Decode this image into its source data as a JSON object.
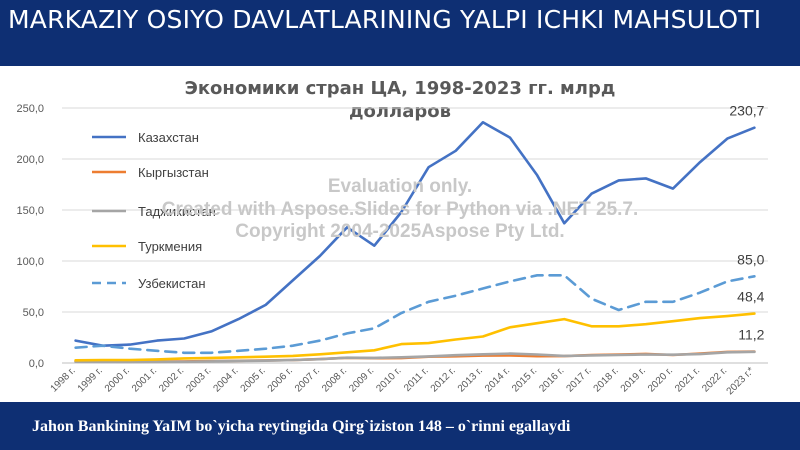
{
  "slide": {
    "title": "MARKAZIY OSIYO DAVLATLARINING YALPI ICHKI MAHSULOTI",
    "footer": "Jahon Bankining YaIM bo`yicha reytingida Qirg`iziston 148 – o`rinni egallaydi"
  },
  "watermark": {
    "line1": "Evaluation only.",
    "line2": "Created with Aspose.Slides for Python via .NET 25.7.",
    "line3": "Copyright 2004-2025Aspose Pty Ltd."
  },
  "chart_data": {
    "type": "line",
    "title_line1": "Экономики стран ЦА, 1998-2023 гг. млрд",
    "title_line2": "долларов",
    "categories": [
      "1998 г.",
      "1999 г.",
      "2000 г.",
      "2001 г.",
      "2002 г.",
      "2003 г.",
      "2004 г.",
      "2005 г.",
      "2006 г.",
      "2007 г.",
      "2008 г.",
      "2009 г.",
      "2010 г.",
      "2011 г.",
      "2012 г.",
      "2013 г.",
      "2014 г.",
      "2015 г.",
      "2016 г.",
      "2017 г.",
      "2018 г.",
      "2019 г.",
      "2020 г.",
      "2021 г.",
      "2022 г.",
      "2023 г.*"
    ],
    "ylim": [
      0,
      250
    ],
    "yticks": [
      "0,0",
      "50,0",
      "100,0",
      "150,0",
      "200,0",
      "250,0"
    ],
    "legend_position": "left",
    "grid": true,
    "series": [
      {
        "name": "Казахстан",
        "color": "#4472c4",
        "dash": "solid",
        "values": [
          22,
          17,
          18,
          22,
          24,
          31,
          43,
          57,
          81,
          105,
          133,
          115,
          148,
          192,
          208,
          236,
          221,
          184,
          137,
          166,
          179,
          181,
          171,
          197,
          220,
          230.7
        ]
      },
      {
        "name": "Кыргызстан",
        "color": "#ed7d31",
        "dash": "solid",
        "values": [
          1.7,
          1.3,
          1.4,
          1.5,
          1.6,
          1.9,
          2.2,
          2.5,
          2.8,
          3.8,
          5.1,
          4.7,
          4.8,
          6.2,
          6.6,
          7.3,
          7.5,
          6.7,
          6.8,
          7.7,
          8.3,
          8.9,
          7.8,
          9.3,
          10.9,
          11.2
        ]
      },
      {
        "name": "Таджикистан",
        "color": "#a5a5a5",
        "dash": "solid",
        "values": [
          1.3,
          1.1,
          0.9,
          1.1,
          1.2,
          1.6,
          2.1,
          2.3,
          2.8,
          3.7,
          5.2,
          5.0,
          5.6,
          6.5,
          7.6,
          8.5,
          9.2,
          8.3,
          7.0,
          7.5,
          7.8,
          8.3,
          8.1,
          8.7,
          10.5,
          11.0
        ]
      },
      {
        "name": "Туркмения",
        "color": "#ffc000",
        "dash": "solid",
        "values": [
          2.6,
          2.9,
          2.9,
          3.5,
          4.5,
          5.0,
          5.6,
          6.2,
          7.0,
          8.5,
          10.5,
          12.5,
          18.5,
          19.5,
          23,
          26,
          35,
          39,
          43,
          36,
          36,
          38,
          41,
          44,
          46,
          48.4
        ]
      },
      {
        "name": "Узбекистан",
        "color": "#5b9bd5",
        "dash": "dashed",
        "values": [
          15,
          17,
          14,
          12,
          10,
          10,
          12,
          14,
          17,
          22,
          29,
          34,
          49,
          60,
          66,
          73,
          80,
          86,
          86,
          63,
          52,
          60,
          60,
          69,
          80,
          85.0
        ]
      }
    ],
    "data_labels": [
      {
        "series": "Казахстан",
        "text": "230,7"
      },
      {
        "series": "Узбекистан",
        "text": "85,0"
      },
      {
        "series": "Туркмения",
        "text": "48,4"
      },
      {
        "series": "Кыргызстан",
        "text": "11,2"
      }
    ]
  }
}
